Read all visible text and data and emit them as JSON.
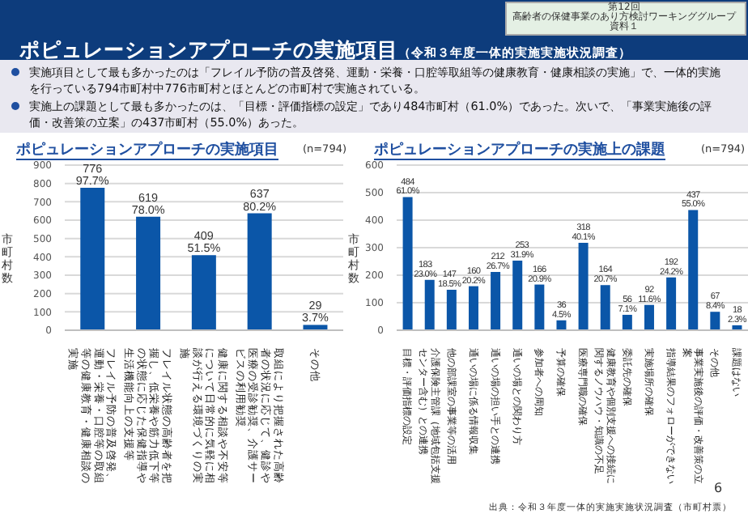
{
  "chart_data": [
    {
      "type": "bar",
      "title": "ポピュレーションアプローチの実施項目",
      "subtitle": "(n=794)",
      "ylabel": "市町村数",
      "categories": [
        "フレイル予防の普及啓発、運動・栄養・口腔等の取組等の健康教育・健康相談の実施",
        "フレイル状態の高齢者を把握し、低栄養や筋力低下等の状態に応じた保健指導や生活機能向上の支援等",
        "健康に関する相談や不安等について日常的に気軽に相談が行える環境づくりの実施",
        "取組により把握された高齢者の状況に応じて、健診や医療の受診勧奨、介護サービスの利用勧奨",
        "その他"
      ],
      "values": [
        776,
        619,
        409,
        637,
        29
      ],
      "value_labels": [
        "776\n97.7%",
        "619\n78.0%",
        "409\n51.5%",
        "637\n80.2%",
        "29\n3.7%"
      ],
      "color": "#0b56a8",
      "ylim": [
        0,
        900
      ],
      "yticks": [
        0,
        100,
        200,
        300,
        400,
        500,
        600,
        700,
        800,
        900
      ],
      "grid": "y",
      "legend": false,
      "annotations": [
        "ポピュレーションアプローチの実施項目",
        "（令和３年度一体的実施実施状況調査）",
        "第12回",
        "高齢者の保健事業のあり方検討ワーキンググループ",
        "資料１",
        "実施項目として最も多かったのは「フレイル予防の普及啓発、運動・栄養・口腔等取組等の健康教育・健康相談の実施」で、一体的実施を行っている794市町村中776市町村とほとんどの市町村で実施されている。",
        "実施上の課題として最も多かったのは、「目標・評価指標の設定」であり484市町村（61.0%）であった。次いで、「事業実施後の評価・改善策の立案」の437市町村（55.0%）あった。"
      ]
    },
    {
      "type": "bar",
      "title": "ポピュレーションアプローチの実施上の課題",
      "subtitle": "(n=794)",
      "ylabel": "市町村数",
      "categories": [
        "目標・評価指標の設定",
        "介護保険主管課（地域包括支援センター含む）との連携",
        "他の部課室の事業等の活用",
        "通いの場に係る情報収集",
        "通いの場の担い手との連携",
        "通いの場との関わり方",
        "参加者への周知",
        "予算の確保",
        "医療専門職の確保",
        "健康教育や個別支援への接続に関するノウハウ・知識の不足",
        "委託先の確保",
        "実施場所の確保",
        "指導結果のフォローができない",
        "事業実施後の評価・改善策の立案",
        "その他",
        "課題はない"
      ],
      "values": [
        484,
        183,
        147,
        160,
        212,
        253,
        166,
        36,
        318,
        164,
        56,
        92,
        192,
        437,
        67,
        18
      ],
      "value_labels": [
        "484\n61.0%",
        "183\n23.0%",
        "147\n18.5%",
        "160\n20.2%",
        "212\n26.7%",
        "253\n31.9%",
        "166\n20.9%",
        "36\n4.5%",
        "318\n40.1%",
        "164\n20.7%",
        "56\n7.1%",
        "92\n11.6%",
        "192\n24.2%",
        "437\n55.0%",
        "67\n8.4%",
        "18\n2.3%"
      ],
      "color": "#0b56a8",
      "ylim": [
        0,
        600
      ],
      "yticks": [
        0,
        100,
        200,
        300,
        400,
        500,
        600
      ],
      "grid": "y",
      "legend": false,
      "annotations": [
        "出典：令和３年度一体的実施実施状況調査（市町村票）",
        "6"
      ]
    }
  ]
}
